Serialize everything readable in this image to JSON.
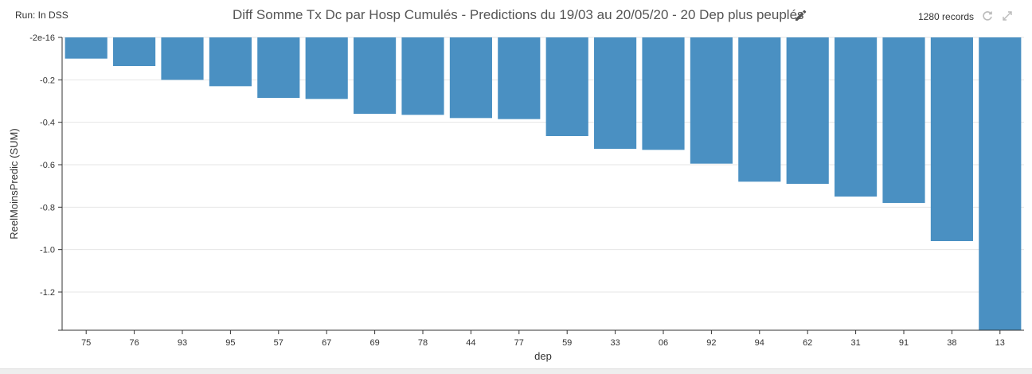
{
  "header": {
    "run_label": "Run: In DSS",
    "title": "Diff Somme Tx Dc par Hosp Cumulés - Predictions du 19/03 au 20/05/20 - 20 Dep plus peuplés",
    "records": "1280 records",
    "icons": [
      "pencil-icon",
      "refresh-icon",
      "expand-icon"
    ]
  },
  "chart_data": {
    "type": "bar",
    "title": "Diff Somme Tx Dc par Hosp Cumulés - Predictions du 19/03 au 20/05/20 - 20 Dep plus peuplés",
    "xlabel": "dep",
    "ylabel": "ReelMoinsPredic (SUM)",
    "categories": [
      "75",
      "76",
      "93",
      "95",
      "57",
      "67",
      "69",
      "78",
      "44",
      "77",
      "59",
      "33",
      "06",
      "92",
      "94",
      "62",
      "31",
      "91",
      "38",
      "13"
    ],
    "values": [
      -0.1,
      -0.135,
      -0.2,
      -0.23,
      -0.285,
      -0.29,
      -0.36,
      -0.365,
      -0.38,
      -0.385,
      -0.465,
      -0.525,
      -0.53,
      -0.595,
      -0.68,
      -0.69,
      -0.75,
      -0.78,
      -0.96,
      -1.38
    ],
    "ylim": [
      -1.38,
      0
    ],
    "yticks": [
      -1.2,
      -1.0,
      -0.8,
      -0.6,
      -0.4,
      -0.2,
      0
    ],
    "ytick_labels": [
      "-1.2",
      "-1.0",
      "-0.8",
      "-0.6",
      "-0.4",
      "-0.2",
      "-2e-16"
    ],
    "grid": true,
    "bar_color": "#4a90c2"
  }
}
